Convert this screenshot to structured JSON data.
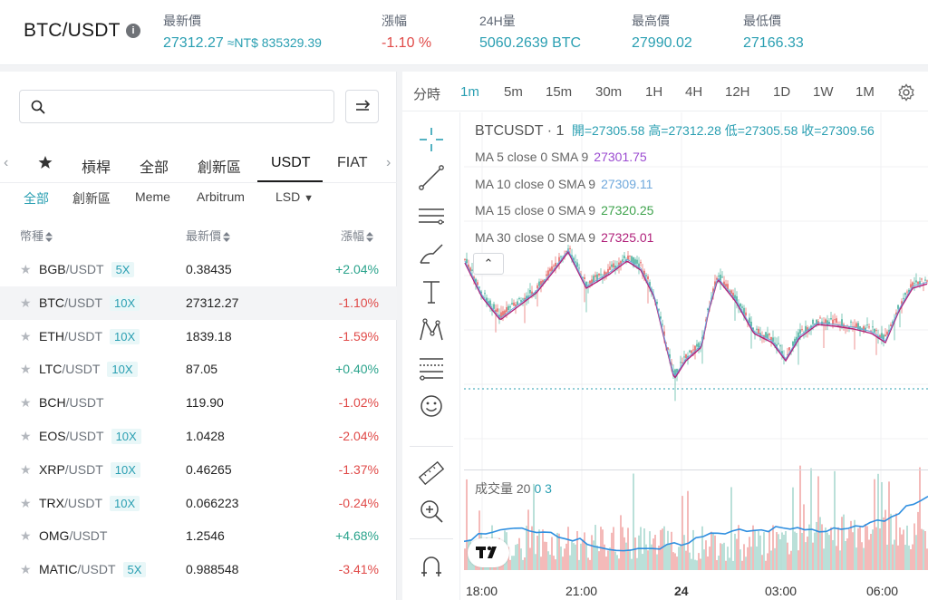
{
  "header": {
    "pair": "BTC/USDT",
    "last_label": "最新價",
    "last_value": "27312.27",
    "last_fiat": "≈NT$ 835329.39",
    "change_label": "漲幅",
    "change_value": "-1.10 %",
    "volume_label": "24H量",
    "volume_value": "5060.2639 BTC",
    "high_label": "最高價",
    "high_value": "27990.02",
    "low_label": "最低價",
    "low_value": "27166.33"
  },
  "market": {
    "tabs": [
      "槓桿",
      "全部",
      "創新區",
      "USDT",
      "FIAT"
    ],
    "active_tab": "USDT",
    "subtabs": [
      "全部",
      "創新區",
      "Meme",
      "Arbitrum",
      "LSD"
    ],
    "columns": {
      "coin": "幣種",
      "price": "最新價",
      "change": "漲幅"
    },
    "rows": [
      {
        "base": "BGB",
        "quote": "/USDT",
        "lev": "5X",
        "price": "0.38435",
        "change": "+2.04%",
        "dir": "up"
      },
      {
        "base": "BTC",
        "quote": "/USDT",
        "lev": "10X",
        "price": "27312.27",
        "change": "-1.10%",
        "dir": "dn"
      },
      {
        "base": "ETH",
        "quote": "/USDT",
        "lev": "10X",
        "price": "1839.18",
        "change": "-1.59%",
        "dir": "dn"
      },
      {
        "base": "LTC",
        "quote": "/USDT",
        "lev": "10X",
        "price": "87.05",
        "change": "+0.40%",
        "dir": "up"
      },
      {
        "base": "BCH",
        "quote": "/USDT",
        "lev": "",
        "price": "119.90",
        "change": "-1.02%",
        "dir": "dn"
      },
      {
        "base": "EOS",
        "quote": "/USDT",
        "lev": "10X",
        "price": "1.0428",
        "change": "-2.04%",
        "dir": "dn"
      },
      {
        "base": "XRP",
        "quote": "/USDT",
        "lev": "10X",
        "price": "0.46265",
        "change": "-1.37%",
        "dir": "dn"
      },
      {
        "base": "TRX",
        "quote": "/USDT",
        "lev": "10X",
        "price": "0.066223",
        "change": "-0.24%",
        "dir": "dn"
      },
      {
        "base": "OMG",
        "quote": "/USDT",
        "lev": "",
        "price": "1.2546",
        "change": "+4.68%",
        "dir": "up"
      },
      {
        "base": "MATIC",
        "quote": "/USDT",
        "lev": "5X",
        "price": "0.988548",
        "change": "-3.41%",
        "dir": "dn"
      }
    ]
  },
  "chart": {
    "intervals": [
      "分時",
      "1m",
      "5m",
      "15m",
      "30m",
      "1H",
      "4H",
      "12H",
      "1D",
      "1W",
      "1M"
    ],
    "active_interval": "1m",
    "symbol": "BTCUSDT · 1",
    "open": "開=27305.58",
    "high": "高=27312.28",
    "low": "低=27305.58",
    "close": "收=27309.56",
    "ma": [
      {
        "label": "MA 5 close 0 SMA 9",
        "value": "27301.75",
        "color": "#9b4bd1"
      },
      {
        "label": "MA 10 close 0 SMA 9",
        "value": "27309.11",
        "color": "#6fa8dc"
      },
      {
        "label": "MA 15 close 0 SMA 9",
        "value": "27320.25",
        "color": "#3fa34d"
      },
      {
        "label": "MA 30 close 0 SMA 9",
        "value": "27325.01",
        "color": "#b0207a"
      }
    ],
    "volume_label": "成交量 20",
    "volume_values": "0  3",
    "time_labels": [
      "18:00",
      "21:00",
      "24",
      "03:00",
      "06:00"
    ],
    "colors": {
      "up": "#2aa38c",
      "down": "#e04a48",
      "accent": "#2a9fb2"
    }
  }
}
